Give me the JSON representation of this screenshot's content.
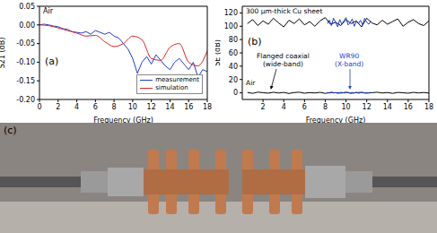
{
  "chart_data": [
    {
      "type": "line",
      "title": "(a)",
      "annotations": [
        "Air"
      ],
      "xlabel": "Frequency (GHz)",
      "ylabel": "S21 (dB)",
      "xlim": [
        0,
        18
      ],
      "xticks": [
        0,
        2,
        4,
        6,
        8,
        10,
        12,
        14,
        16,
        18
      ],
      "ylim": [
        -0.2,
        0.05
      ],
      "yticks": [
        {
          "value": -0.2,
          "label": "-0.20"
        },
        {
          "value": -0.15,
          "label": "-0.15"
        },
        {
          "value": -0.1,
          "label": "-0.10"
        },
        {
          "value": -0.05,
          "label": "-0.05"
        },
        {
          "value": 0,
          "label": "0.00"
        },
        {
          "value": 0.05,
          "label": "0.05"
        }
      ],
      "legend": "lower right",
      "grid": false,
      "series": [
        {
          "name": "measurement",
          "color": "#1f3fd1",
          "line_style": "solid",
          "x": [
            0,
            0.5,
            1,
            1.5,
            2,
            2.5,
            3,
            3.5,
            4,
            4.5,
            5,
            5.5,
            6,
            6.5,
            7,
            7.5,
            8,
            8.5,
            9,
            9.5,
            10,
            10.5,
            11,
            11.5,
            12,
            12.5,
            13,
            13.5,
            14,
            14.5,
            15,
            15.5,
            16,
            16.5,
            17,
            17.5,
            18
          ],
          "values": [
            0,
            0.002,
            0,
            -0.003,
            -0.005,
            -0.01,
            -0.012,
            -0.018,
            -0.02,
            -0.022,
            -0.018,
            -0.025,
            -0.015,
            -0.02,
            -0.025,
            -0.02,
            -0.03,
            -0.035,
            -0.05,
            -0.065,
            -0.09,
            -0.13,
            -0.1,
            -0.085,
            -0.105,
            -0.08,
            -0.095,
            -0.11,
            -0.12,
            -0.1,
            -0.09,
            -0.105,
            -0.12,
            -0.1,
            -0.14,
            -0.12,
            -0.125
          ]
        },
        {
          "name": "simulation",
          "color": "#e0202a",
          "line_style": "solid",
          "x": [
            0,
            1,
            2,
            3,
            4,
            5,
            6,
            7,
            8,
            9,
            10,
            11,
            12,
            13,
            14,
            15,
            16,
            17,
            18
          ],
          "values": [
            0,
            -0.002,
            -0.008,
            -0.015,
            -0.022,
            -0.03,
            -0.028,
            -0.045,
            -0.058,
            -0.05,
            -0.03,
            -0.04,
            -0.09,
            -0.095,
            -0.06,
            -0.05,
            -0.1,
            -0.11,
            -0.07
          ]
        }
      ]
    },
    {
      "type": "line",
      "title": "(b)",
      "annotations": [
        "300 µm-thick Cu sheet",
        "Air",
        "Flanged coaxial\n(wide-band)",
        "WR90\n(X-band)"
      ],
      "xlabel": "Frequency (GHz)",
      "ylabel": "SE (dB)",
      "xlim": [
        0,
        18
      ],
      "xticks": [
        2,
        4,
        6,
        8,
        10,
        12,
        14,
        16,
        18
      ],
      "ylim": [
        -10,
        130
      ],
      "yticks": [
        0,
        20,
        40,
        60,
        80,
        100,
        120
      ],
      "grid": false,
      "series": [
        {
          "color": "#000000",
          "line_style": "solid",
          "x": [
            0.5,
            1,
            1.5,
            2,
            2.5,
            3,
            3.5,
            4,
            4.5,
            5,
            5.5,
            6,
            6.5,
            7,
            7.5,
            8,
            8.5,
            9,
            9.5,
            10,
            10.5,
            11,
            11.5,
            12,
            12.5,
            13,
            13.5,
            14,
            14.5,
            15,
            15.5,
            16,
            16.5,
            17,
            17.5,
            18
          ],
          "values": [
            104,
            110,
            101,
            108,
            103,
            112,
            105,
            99,
            109,
            104,
            111,
            102,
            107,
            100,
            108,
            113,
            103,
            106,
            101,
            110,
            104,
            108,
            99,
            112,
            105,
            102,
            109,
            103,
            107,
            111,
            100,
            106,
            110,
            104,
            101,
            108
          ]
        },
        {
          "color": "#1f3fd1",
          "line_style": "solid",
          "x": [
            8.2,
            8.4,
            8.6,
            8.8,
            9,
            9.2,
            9.4,
            9.6,
            9.8,
            10,
            10.2,
            10.4,
            10.6,
            10.8,
            11,
            11.2,
            11.4,
            11.6,
            11.8,
            12,
            12.2,
            12.4
          ],
          "values": [
            104,
            109,
            101,
            112,
            106,
            99,
            110,
            103,
            108,
            113,
            102,
            105,
            111,
            100,
            107,
            104,
            109,
            102,
            112,
            106,
            103,
            108
          ]
        },
        {
          "color": "#000000",
          "line_style": "solid",
          "x": [
            0.5,
            1,
            1.5,
            2,
            2.5,
            3,
            3.5,
            4,
            4.5,
            5,
            5.5,
            6,
            6.5,
            7,
            7.5,
            8,
            8.5,
            9,
            9.5,
            10,
            10.5,
            11,
            11.5,
            12,
            12.5,
            13,
            13.5,
            14,
            14.5,
            15,
            15.5,
            16,
            16.5,
            17,
            17.5,
            18
          ],
          "values": [
            0.5,
            -0.8,
            1,
            0.2,
            -0.5,
            0.8,
            -0.3,
            0.6,
            -1,
            0.4,
            0.9,
            -0.6,
            0.3,
            -0.2,
            0.7,
            -0.9,
            0.5,
            0.1,
            -0.4,
            0.8,
            -0.7,
            0.3,
            0.6,
            -0.5,
            0.2,
            0.9,
            -0.3,
            0.4,
            -0.8,
            0.6,
            0.1,
            -0.6,
            0.7,
            -0.2,
            0.5,
            -0.4
          ]
        },
        {
          "color": "#1f3fd1",
          "line_style": "solid",
          "x": [
            8.2,
            8.4,
            8.6,
            8.8,
            9,
            9.2,
            9.4,
            9.6,
            9.8,
            10,
            10.2,
            10.4,
            10.6,
            10.8,
            11,
            11.2,
            11.4,
            11.6,
            11.8,
            12,
            12.2,
            12.4
          ],
          "values": [
            0.6,
            -0.5,
            0.9,
            -0.2,
            0.4,
            -0.8,
            0.3,
            0.7,
            -0.4,
            0.1,
            0.8,
            -0.6,
            0.5,
            -0.3,
            0.9,
            -0.7,
            0.2,
            0.6,
            -0.5,
            0.4,
            -0.1,
            0.7
          ]
        }
      ]
    }
  ],
  "photo": {
    "label": "(c)"
  }
}
